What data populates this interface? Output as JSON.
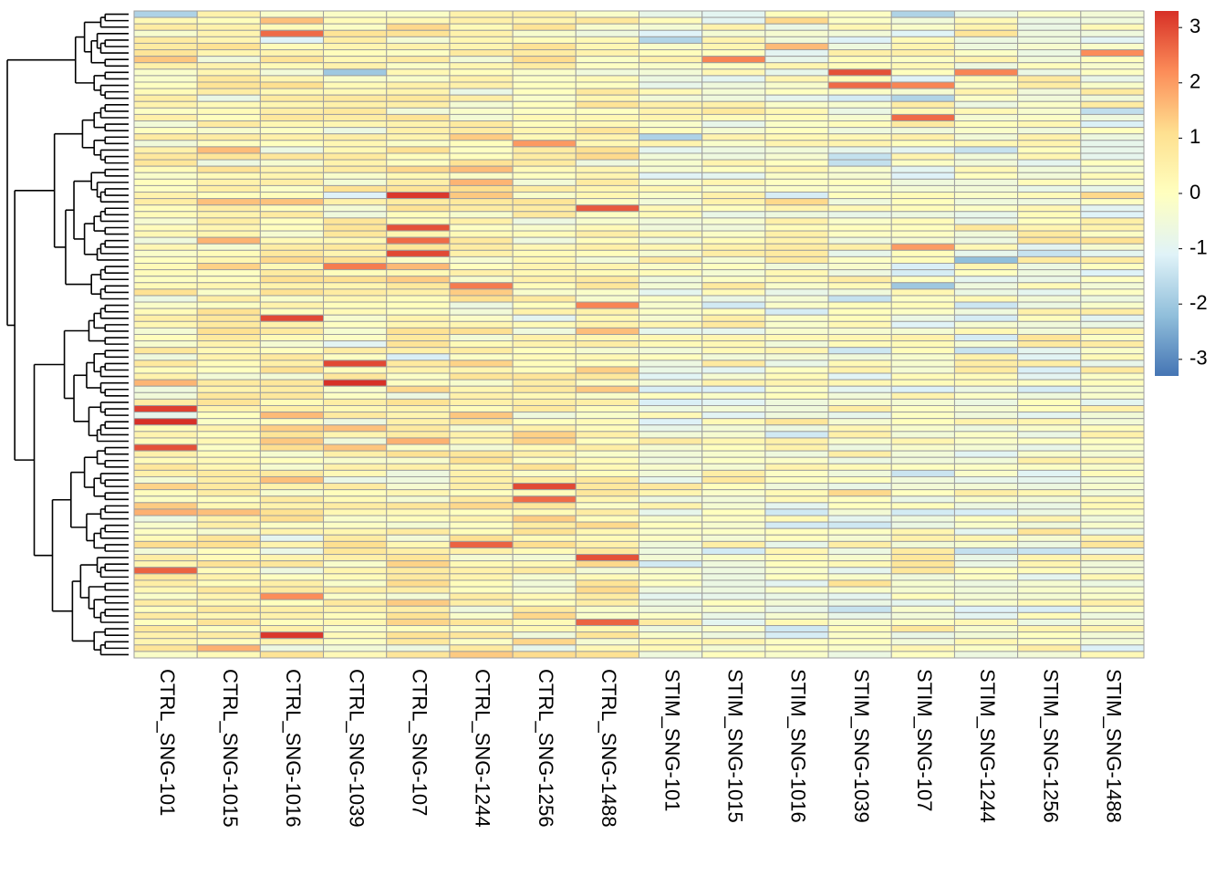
{
  "chart_data": {
    "type": "heatmap",
    "columns": [
      "CTRL_SNG-101",
      "CTRL_SNG-1015",
      "CTRL_SNG-1016",
      "CTRL_SNG-1039",
      "CTRL_SNG-107",
      "CTRL_SNG-1244",
      "CTRL_SNG-1256",
      "CTRL_SNG-1488",
      "STIM_SNG-101",
      "STIM_SNG-1015",
      "STIM_SNG-1016",
      "STIM_SNG-1039",
      "STIM_SNG-107",
      "STIM_SNG-1244",
      "STIM_SNG-1256",
      "STIM_SNG-1488"
    ],
    "n_rows": 100,
    "row_dendrogram": true,
    "color_scale": {
      "min": -3.3,
      "max": 3.3,
      "stops": [
        {
          "value": -3.3,
          "color": "#4575B4"
        },
        {
          "value": -2.2,
          "color": "#91BFDB"
        },
        {
          "value": -1.1,
          "color": "#E0F3F8"
        },
        {
          "value": 0,
          "color": "#FFFFBF"
        },
        {
          "value": 1.1,
          "color": "#FEE090"
        },
        {
          "value": 2.2,
          "color": "#FC8D59"
        },
        {
          "value": 3.3,
          "color": "#D73027"
        }
      ]
    },
    "legend": {
      "position": "right",
      "ticks": [
        3,
        2,
        1,
        0,
        -1,
        -2,
        -3
      ],
      "tick_labels": [
        "3",
        "2",
        "1",
        "0",
        "-1",
        "-2",
        "-3"
      ]
    },
    "seed": 20240517,
    "grid_color": "#9E9E9E",
    "dendrogram_color": "#000000"
  }
}
